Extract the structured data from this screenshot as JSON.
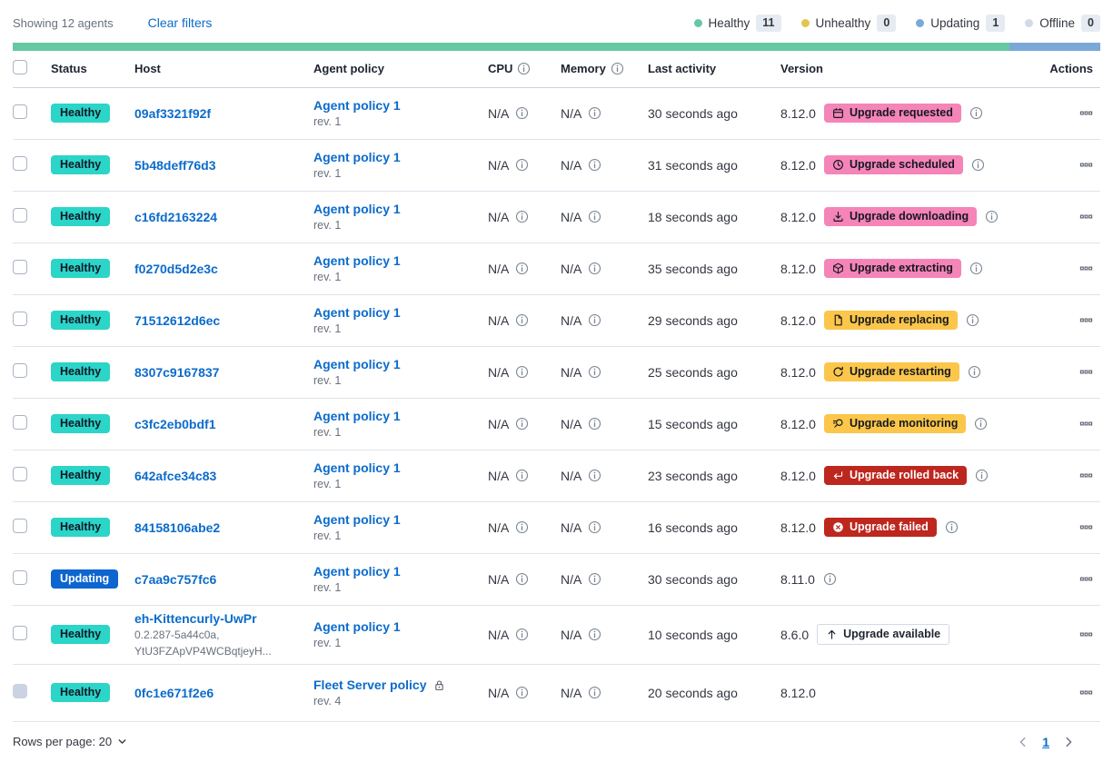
{
  "toolbar": {
    "showing": "Showing 12 agents",
    "clear_filters": "Clear filters"
  },
  "legend": [
    {
      "label": "Healthy",
      "count": "11",
      "color": "#66c9a3"
    },
    {
      "label": "Unhealthy",
      "count": "0",
      "color": "#e3c44f"
    },
    {
      "label": "Updating",
      "count": "1",
      "color": "#7aa8d8"
    },
    {
      "label": "Offline",
      "count": "0",
      "color": "#d3dae6"
    }
  ],
  "health_bar": {
    "segments": [
      {
        "status": "healthy",
        "color": "#66c9a3",
        "fraction": 0.9167
      },
      {
        "status": "updating",
        "color": "#7aa8d8",
        "fraction": 0.0833
      }
    ]
  },
  "table": {
    "headers": {
      "status": "Status",
      "host": "Host",
      "policy": "Agent policy",
      "cpu": "CPU",
      "memory": "Memory",
      "last_activity": "Last activity",
      "version": "Version",
      "actions": "Actions"
    },
    "rows": [
      {
        "status": "Healthy",
        "status_variant": "healthy",
        "host": "09af3321f92f",
        "host_sub": [],
        "policy": "Agent policy 1",
        "policy_locked": false,
        "revision": "rev. 1",
        "cpu": "N/A",
        "memory": "N/A",
        "last_activity": "30 seconds ago",
        "version": "8.12.0",
        "upgrade": {
          "label": "Upgrade requested",
          "variant": "pink",
          "icon": "calendar-icon"
        },
        "version_info": true,
        "checkbox_disabled": false
      },
      {
        "status": "Healthy",
        "status_variant": "healthy",
        "host": "5b48deff76d3",
        "host_sub": [],
        "policy": "Agent policy 1",
        "policy_locked": false,
        "revision": "rev. 1",
        "cpu": "N/A",
        "memory": "N/A",
        "last_activity": "31 seconds ago",
        "version": "8.12.0",
        "upgrade": {
          "label": "Upgrade scheduled",
          "variant": "pink",
          "icon": "clock-icon"
        },
        "version_info": true,
        "checkbox_disabled": false
      },
      {
        "status": "Healthy",
        "status_variant": "healthy",
        "host": "c16fd2163224",
        "host_sub": [],
        "policy": "Agent policy 1",
        "policy_locked": false,
        "revision": "rev. 1",
        "cpu": "N/A",
        "memory": "N/A",
        "last_activity": "18 seconds ago",
        "version": "8.12.0",
        "upgrade": {
          "label": "Upgrade downloading",
          "variant": "pink",
          "icon": "download-icon"
        },
        "version_info": true,
        "checkbox_disabled": false
      },
      {
        "status": "Healthy",
        "status_variant": "healthy",
        "host": "f0270d5d2e3c",
        "host_sub": [],
        "policy": "Agent policy 1",
        "policy_locked": false,
        "revision": "rev. 1",
        "cpu": "N/A",
        "memory": "N/A",
        "last_activity": "35 seconds ago",
        "version": "8.12.0",
        "upgrade": {
          "label": "Upgrade extracting",
          "variant": "pink",
          "icon": "package-icon"
        },
        "version_info": true,
        "checkbox_disabled": false
      },
      {
        "status": "Healthy",
        "status_variant": "healthy",
        "host": "71512612d6ec",
        "host_sub": [],
        "policy": "Agent policy 1",
        "policy_locked": false,
        "revision": "rev. 1",
        "cpu": "N/A",
        "memory": "N/A",
        "last_activity": "29 seconds ago",
        "version": "8.12.0",
        "upgrade": {
          "label": "Upgrade replacing",
          "variant": "yellow",
          "icon": "document-icon"
        },
        "version_info": true,
        "checkbox_disabled": false
      },
      {
        "status": "Healthy",
        "status_variant": "healthy",
        "host": "8307c9167837",
        "host_sub": [],
        "policy": "Agent policy 1",
        "policy_locked": false,
        "revision": "rev. 1",
        "cpu": "N/A",
        "memory": "N/A",
        "last_activity": "25 seconds ago",
        "version": "8.12.0",
        "upgrade": {
          "label": "Upgrade restarting",
          "variant": "yellow",
          "icon": "refresh-icon"
        },
        "version_info": true,
        "checkbox_disabled": false
      },
      {
        "status": "Healthy",
        "status_variant": "healthy",
        "host": "c3fc2eb0bdf1",
        "host_sub": [],
        "policy": "Agent policy 1",
        "policy_locked": false,
        "revision": "rev. 1",
        "cpu": "N/A",
        "memory": "N/A",
        "last_activity": "15 seconds ago",
        "version": "8.12.0",
        "upgrade": {
          "label": "Upgrade monitoring",
          "variant": "yellow",
          "icon": "inspect-icon"
        },
        "version_info": true,
        "checkbox_disabled": false
      },
      {
        "status": "Healthy",
        "status_variant": "healthy",
        "host": "642afce34c83",
        "host_sub": [],
        "policy": "Agent policy 1",
        "policy_locked": false,
        "revision": "rev. 1",
        "cpu": "N/A",
        "memory": "N/A",
        "last_activity": "23 seconds ago",
        "version": "8.12.0",
        "upgrade": {
          "label": "Upgrade rolled back",
          "variant": "red",
          "icon": "return-icon"
        },
        "version_info": true,
        "checkbox_disabled": false
      },
      {
        "status": "Healthy",
        "status_variant": "healthy",
        "host": "84158106abe2",
        "host_sub": [],
        "policy": "Agent policy 1",
        "policy_locked": false,
        "revision": "rev. 1",
        "cpu": "N/A",
        "memory": "N/A",
        "last_activity": "16 seconds ago",
        "version": "8.12.0",
        "upgrade": {
          "label": "Upgrade failed",
          "variant": "red",
          "icon": "cross-in-circle-icon"
        },
        "version_info": true,
        "checkbox_disabled": false
      },
      {
        "status": "Updating",
        "status_variant": "updating",
        "host": "c7aa9c757fc6",
        "host_sub": [],
        "policy": "Agent policy 1",
        "policy_locked": false,
        "revision": "rev. 1",
        "cpu": "N/A",
        "memory": "N/A",
        "last_activity": "30 seconds ago",
        "version": "8.11.0",
        "upgrade": null,
        "version_info": true,
        "checkbox_disabled": false
      },
      {
        "status": "Healthy",
        "status_variant": "healthy",
        "host": "eh-Kittencurly-UwPr",
        "host_sub": [
          "0.2.287-5a44c0a,",
          "YtU3FZApVP4WCBqtjeyH..."
        ],
        "policy": "Agent policy 1",
        "policy_locked": false,
        "revision": "rev. 1",
        "cpu": "N/A",
        "memory": "N/A",
        "last_activity": "10 seconds ago",
        "version": "8.6.0",
        "upgrade": {
          "label": "Upgrade available",
          "variant": "hollow",
          "icon": "arrow-up-icon"
        },
        "version_info": false,
        "checkbox_disabled": false
      },
      {
        "status": "Healthy",
        "status_variant": "healthy",
        "host": "0fc1e671f2e6",
        "host_sub": [],
        "policy": "Fleet Server policy",
        "policy_locked": true,
        "revision": "rev. 4",
        "cpu": "N/A",
        "memory": "N/A",
        "last_activity": "20 seconds ago",
        "version": "8.12.0",
        "upgrade": null,
        "version_info": false,
        "checkbox_disabled": true
      }
    ]
  },
  "footer": {
    "rows_per_page": "Rows per page: 20",
    "page": "1"
  },
  "colors": {
    "healthy_badge": "#2bd5c8",
    "updating_badge": "#0d65cf",
    "pink_badge": "#f584b9",
    "yellow_badge": "#fbc64a",
    "red_badge": "#bd271e",
    "link_blue": "#0b6bcb"
  }
}
